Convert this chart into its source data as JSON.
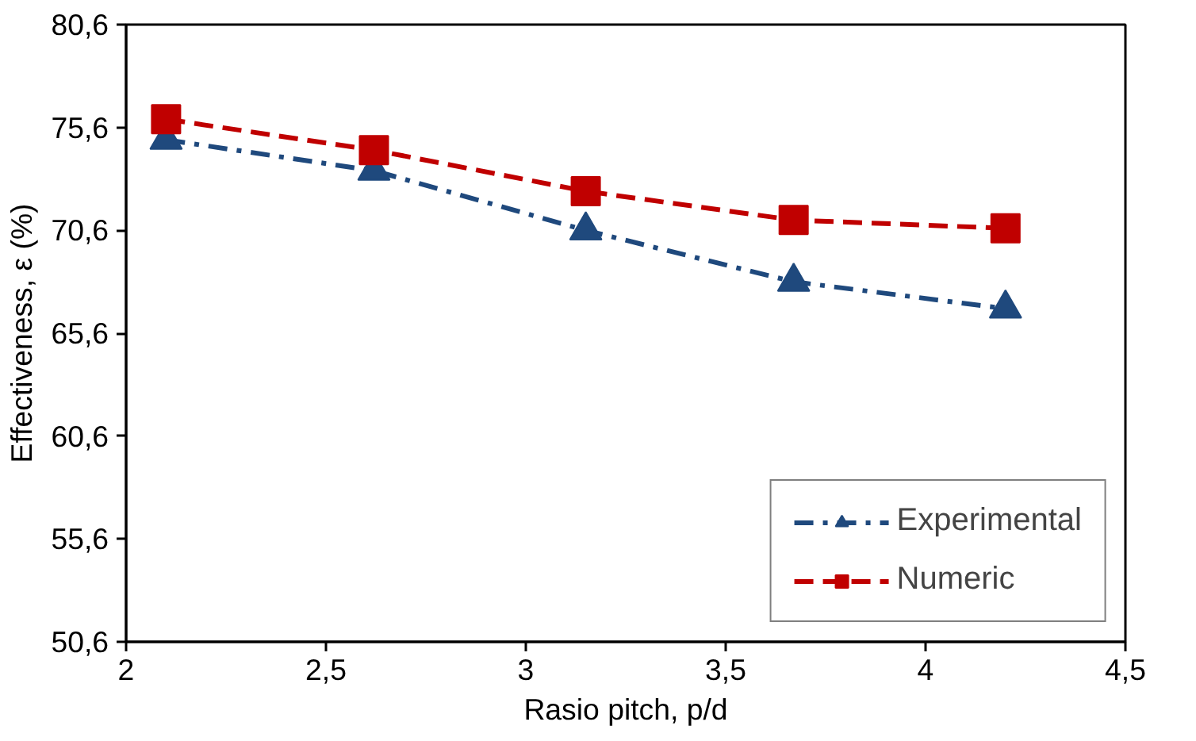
{
  "chart_data": {
    "type": "line",
    "xlabel": "Rasio pitch, p/d",
    "ylabel": "Effectiveness, ε (%)",
    "x": [
      2.1,
      2.62,
      3.15,
      3.67,
      4.2
    ],
    "xlim": [
      2,
      4.5
    ],
    "xticks": [
      2,
      {
        "value": 2.5,
        "label": "2,5"
      },
      3,
      {
        "value": 3.5,
        "label": "3,5"
      },
      4,
      {
        "value": 4.5,
        "label": "4,5"
      }
    ],
    "ylim": [
      50.6,
      80.6
    ],
    "yticks": [
      {
        "value": 50.6,
        "label": "50,6"
      },
      {
        "value": 55.6,
        "label": "55,6"
      },
      {
        "value": 60.6,
        "label": "60,6"
      },
      {
        "value": 65.6,
        "label": "65,6"
      },
      {
        "value": 70.6,
        "label": "70,6"
      },
      {
        "value": 75.6,
        "label": "75,6"
      },
      {
        "value": 80.6,
        "label": "80,6"
      }
    ],
    "grid": false,
    "legend": "bottom right",
    "series": [
      {
        "name": "Experimental",
        "color": "#1f497d",
        "marker": "triangle",
        "line_style": "dashdot",
        "values": [
          75.0,
          73.5,
          70.6,
          68.1,
          66.8
        ]
      },
      {
        "name": "Numeric",
        "color": "#c00000",
        "marker": "square",
        "line_style": "dashed",
        "values": [
          76.0,
          74.5,
          72.5,
          71.1,
          70.7
        ]
      }
    ]
  }
}
